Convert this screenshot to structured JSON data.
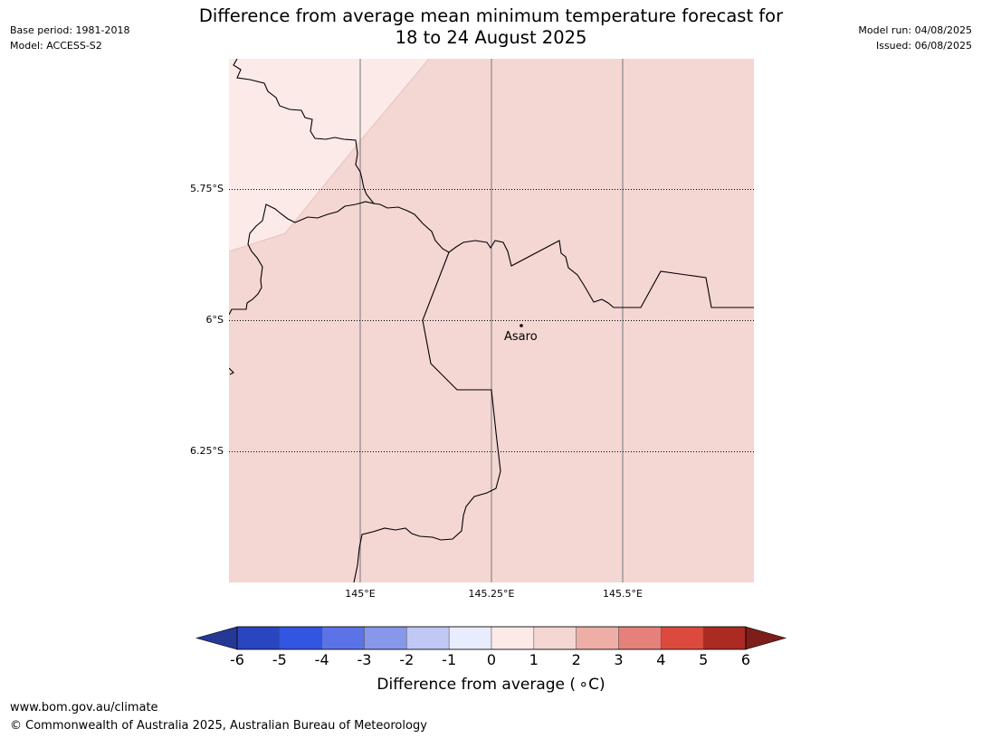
{
  "header": {
    "title_line1": "Difference from average mean minimum temperature forecast for",
    "title_line2": "18 to 24 August 2025",
    "base_period": "Base period: 1981-2018",
    "model": "Model: ACCESS-S2",
    "model_run": "Model run: 04/08/2025",
    "issued": "Issued: 06/08/2025"
  },
  "map": {
    "lat_labels": [
      "5.75°S",
      "6°S",
      "6.25°S"
    ],
    "lon_labels": [
      "145°E",
      "145.25°E",
      "145.5°E"
    ],
    "place": "Asaro",
    "colors": {
      "anomaly_0_1": "#fbeae8",
      "anomaly_1_2": "#f4d6d3",
      "grid_line": "#8a8a8a",
      "border": "#000000"
    }
  },
  "colorbar": {
    "ticks": [
      "-6",
      "-5",
      "-4",
      "-3",
      "-2",
      "-1",
      "0",
      "1",
      "2",
      "3",
      "4",
      "5",
      "6"
    ],
    "colors": [
      "#253896",
      "#2a45c0",
      "#3255e2",
      "#5b73e6",
      "#8797ea",
      "#c0c8f5",
      "#e9ecfc",
      "#fbeae8",
      "#f4d6d3",
      "#eeaea6",
      "#e6807a",
      "#dc4a3e",
      "#ab2a22",
      "#7d1e1a"
    ],
    "label": "Difference from average ( ∘C)"
  },
  "footer": {
    "url": "www.bom.gov.au/climate",
    "copyright": "© Commonwealth of Australia 2025, Australian Bureau of Meteorology"
  }
}
